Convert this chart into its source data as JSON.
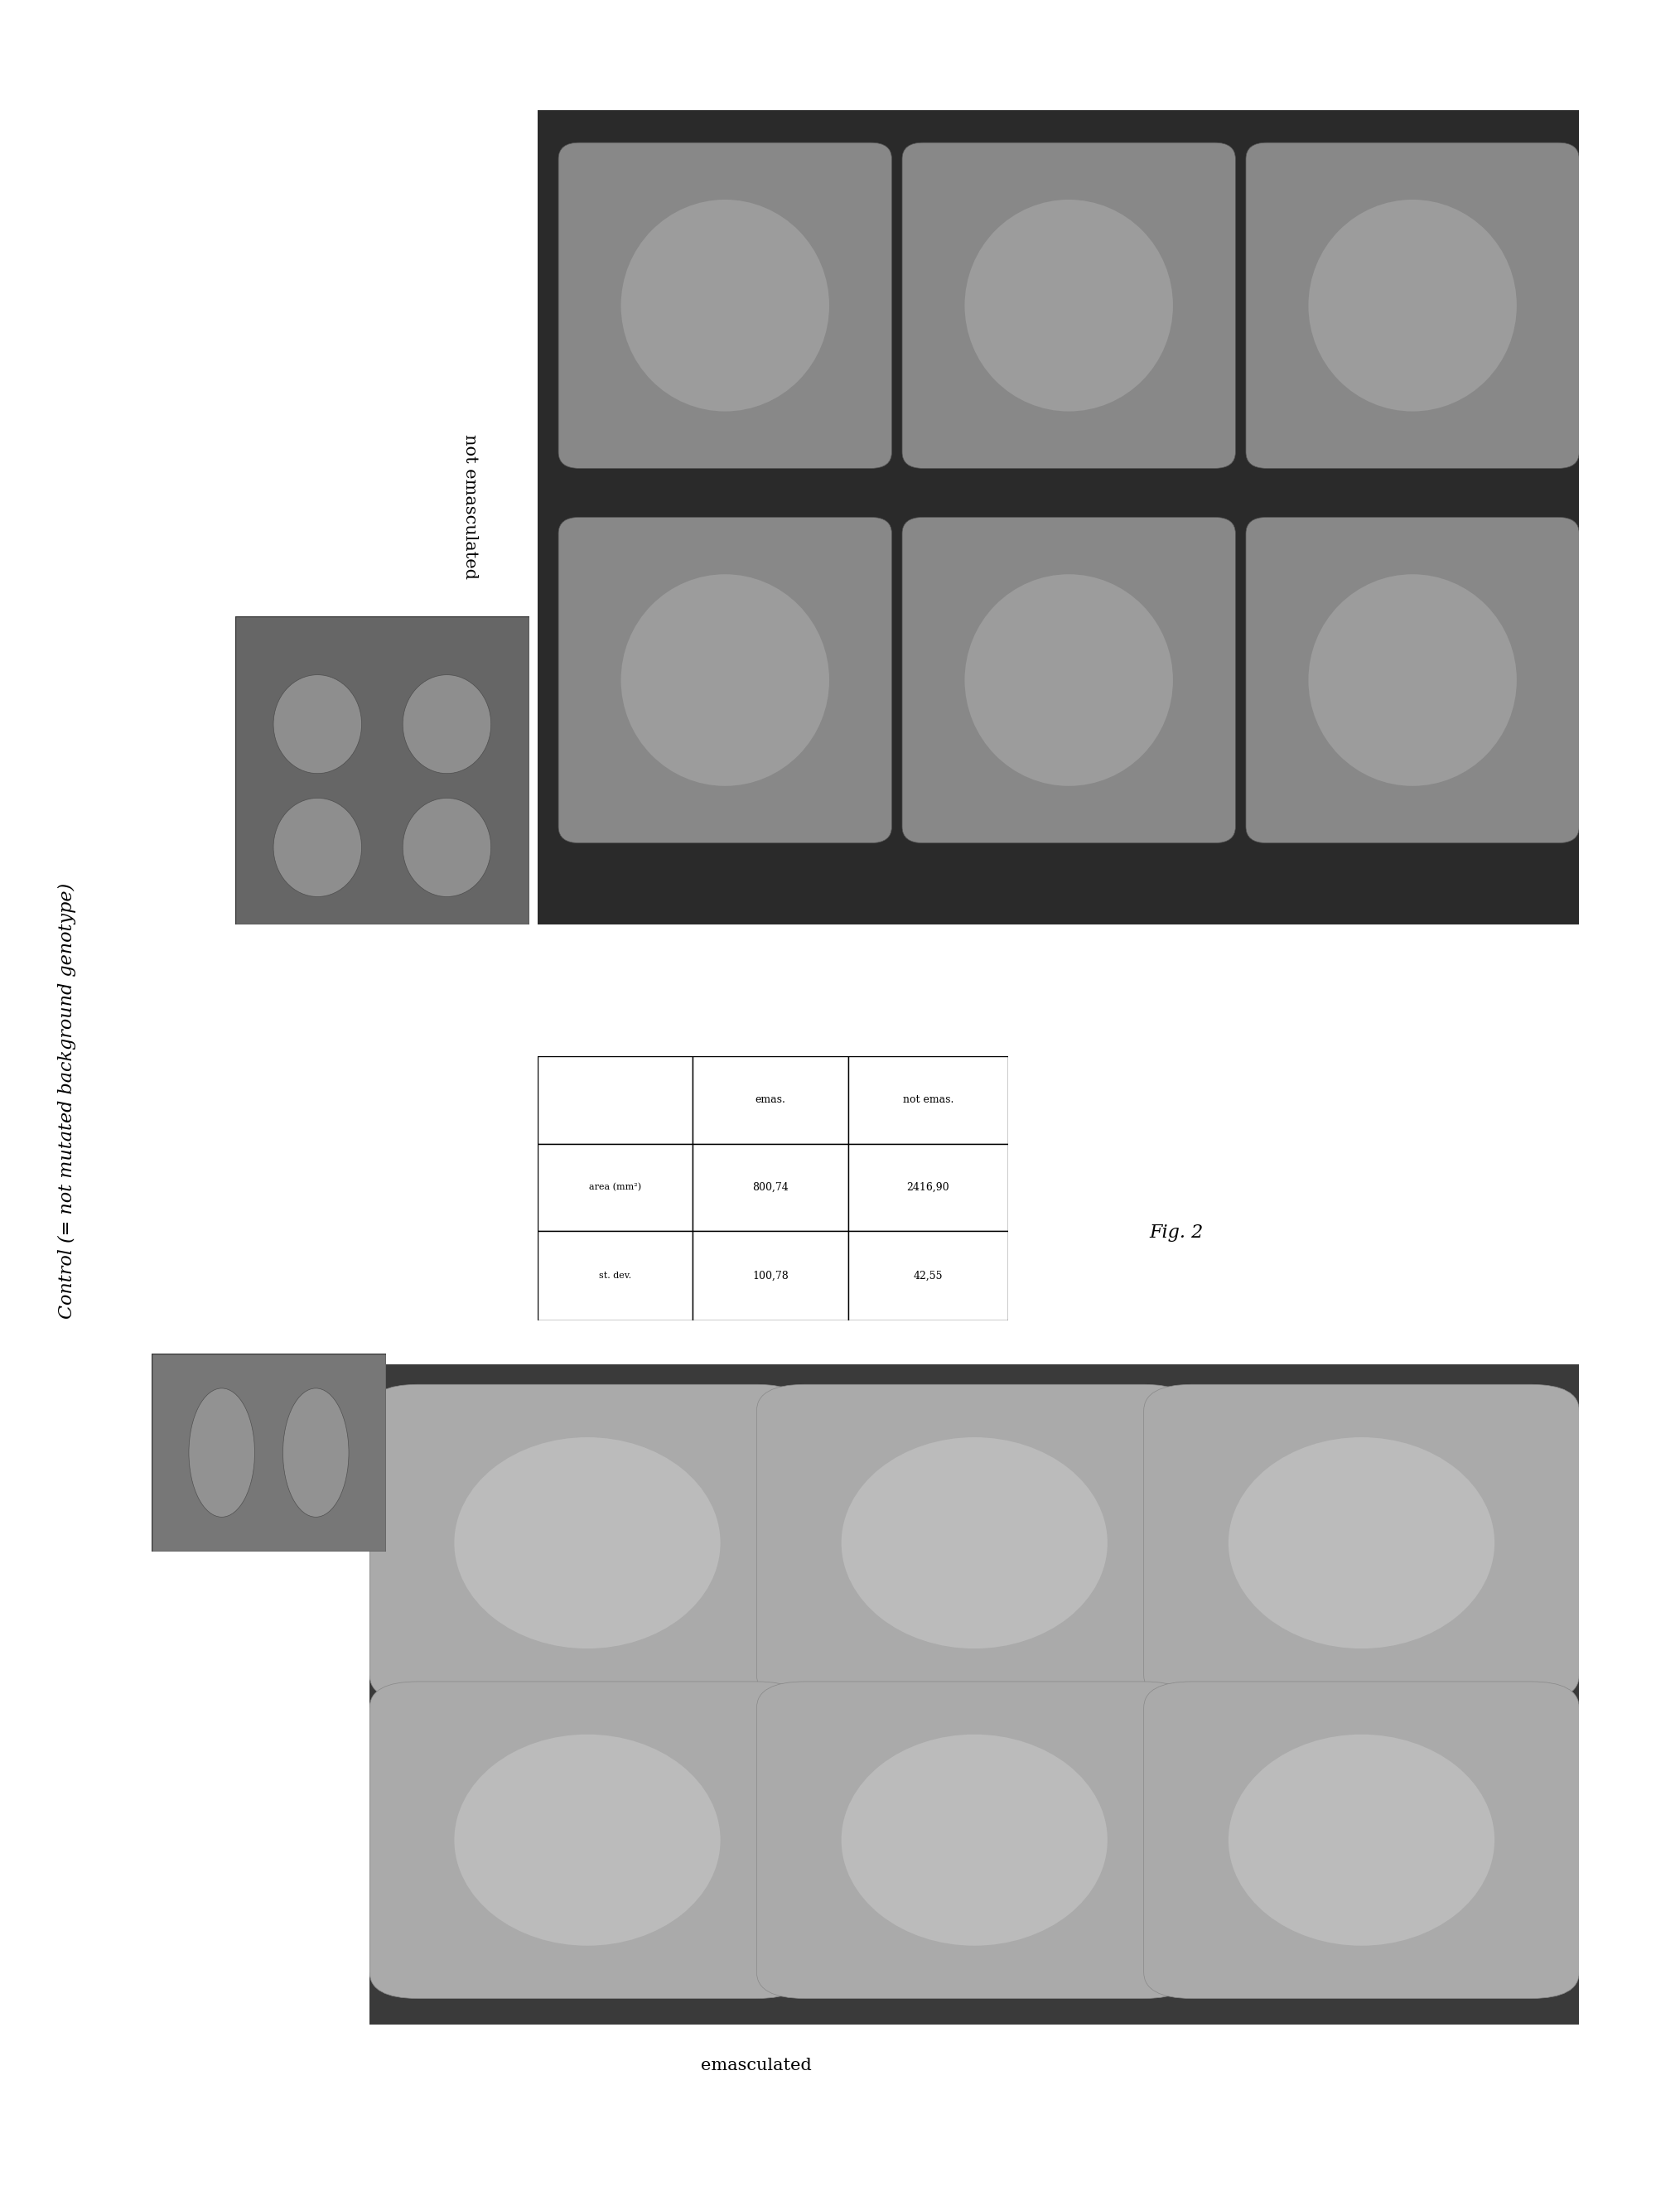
{
  "title": "Control (= not mutated background genotype)",
  "fig_bg": "#ffffff",
  "left_label": "emasculated",
  "right_label": "not emasculated",
  "fig_caption": "Fig. 2",
  "table_col_header1": "emas.",
  "table_col_header2": "not emas.",
  "table_row_label1": "area (mm²)",
  "table_row_label2": "st. dev.",
  "table_val_r1c1": "800,74",
  "table_val_r1c2": "2416,90",
  "table_val_r2c1": "100,78",
  "table_val_r2c2": "42,55",
  "dark_bg_color": "#3a3a3a",
  "dark_bg_color2": "#2a2a2a",
  "tomato_outer": "#aaaaaa",
  "tomato_inner": "#cccccc",
  "tomato_outer2": "#888888",
  "tomato_inner2": "#b0b0b0",
  "inset_bg": "#777777",
  "inset_bg2": "#666666"
}
